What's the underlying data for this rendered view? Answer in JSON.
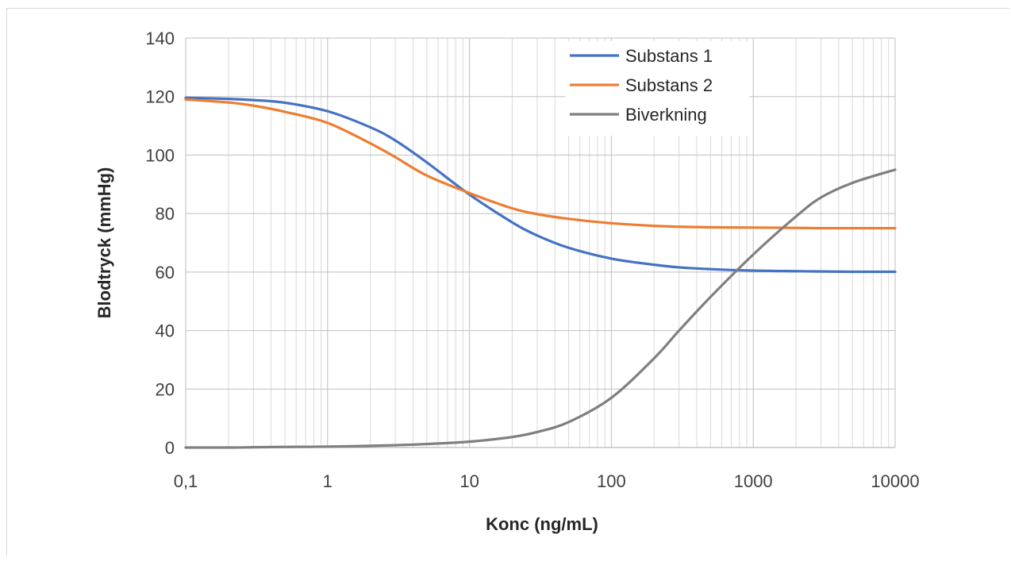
{
  "chart_data": {
    "type": "line",
    "title": "",
    "xlabel": "Konc (ng/mL)",
    "ylabel": "Blodtryck (mmHg)",
    "x_scale": "log",
    "xlim": [
      0.1,
      10000
    ],
    "ylim": [
      0,
      140
    ],
    "x_ticks": [
      0.1,
      1,
      10,
      100,
      1000,
      10000
    ],
    "x_tick_labels": [
      "0,1",
      "1",
      "10",
      "100",
      "1000",
      "10000"
    ],
    "y_ticks": [
      0,
      20,
      40,
      60,
      80,
      100,
      120,
      140
    ],
    "y_tick_labels": [
      "0",
      "20",
      "40",
      "60",
      "80",
      "100",
      "120",
      "140"
    ],
    "grid": true,
    "legend_position": "top-right",
    "x": [
      0.1,
      0.2,
      0.3,
      0.5,
      1,
      2,
      3,
      5,
      10,
      20,
      30,
      50,
      100,
      200,
      300,
      500,
      1000,
      2000,
      3000,
      5000,
      10000
    ],
    "series": [
      {
        "name": "Substans 1",
        "color": "#4472c4",
        "values": [
          119.6,
          119.2,
          118.8,
          117.9,
          115.0,
          109.5,
          105.0,
          97.5,
          86.5,
          77.0,
          72.5,
          68.3,
          64.6,
          62.5,
          61.6,
          61.0,
          60.5,
          60.3,
          60.2,
          60.1,
          60.1
        ]
      },
      {
        "name": "Substans 2",
        "color": "#ed7d31",
        "values": [
          119.0,
          118.0,
          116.9,
          114.8,
          111.0,
          104.0,
          99.3,
          93.0,
          87.0,
          81.8,
          79.8,
          78.2,
          76.7,
          75.8,
          75.5,
          75.3,
          75.2,
          75.1,
          75.0,
          75.0,
          75.0
        ]
      },
      {
        "name": "Biverkning",
        "color": "#7f7f7f",
        "values": [
          0.0,
          0.0,
          0.1,
          0.2,
          0.3,
          0.6,
          0.8,
          1.2,
          2.0,
          3.6,
          5.3,
          8.7,
          17.0,
          30.5,
          40.0,
          51.5,
          66.0,
          79.0,
          85.5,
          90.5,
          95.0
        ]
      }
    ]
  }
}
